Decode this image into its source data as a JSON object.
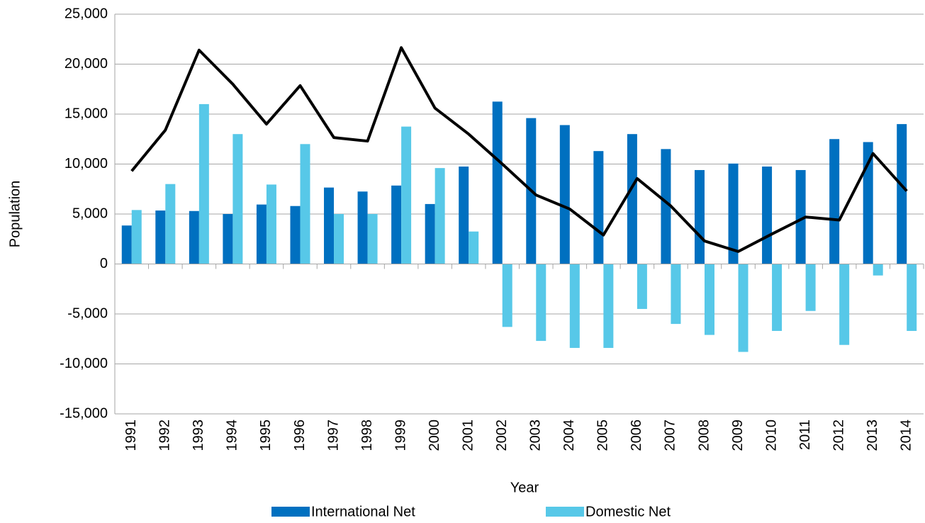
{
  "chart_data": {
    "type": "bar",
    "x_label": "Year",
    "y_label": "Population",
    "categories": [
      "1991",
      "1992",
      "1993",
      "1994",
      "1995",
      "1996",
      "1997",
      "1998",
      "1999",
      "2000",
      "2001",
      "2002",
      "2003",
      "2004",
      "2005",
      "2006",
      "2007",
      "2008",
      "2009",
      "2010",
      "2011",
      "2012",
      "2013",
      "2014"
    ],
    "series": [
      {
        "name": "International Net",
        "color": "#0070c0",
        "values": [
          3850,
          5350,
          5300,
          5000,
          5950,
          5800,
          7650,
          7250,
          7850,
          6000,
          9750,
          16250,
          14600,
          13900,
          11300,
          13000,
          11500,
          9400,
          10050,
          9750,
          9400,
          12500,
          12200,
          14000
        ]
      },
      {
        "name": "Domestic Net",
        "color": "#57c8e8",
        "values": [
          5400,
          8000,
          16000,
          13000,
          7950,
          12000,
          5000,
          5000,
          13750,
          9600,
          3250,
          -6300,
          -7700,
          -8400,
          -8400,
          -4500,
          -6000,
          -7100,
          -8800,
          -6700,
          -4700,
          -8100,
          -1150,
          -6700
        ]
      },
      {
        "type": "line",
        "color": "#000000",
        "values": [
          9300,
          13400,
          21400,
          18000,
          14000,
          17850,
          12650,
          12300,
          21650,
          15600,
          13000,
          10000,
          6900,
          5500,
          2900,
          8550,
          5800,
          2300,
          1250,
          3000,
          4700,
          4400,
          11050,
          7300
        ]
      }
    ],
    "ylim": [
      -15000,
      25000
    ],
    "yticks": [
      {
        "value": -15000,
        "label": "-15,000"
      },
      {
        "value": -10000,
        "label": "-10,000"
      },
      {
        "value": -5000,
        "label": "-5,000"
      },
      0,
      {
        "value": 5000,
        "label": "5,000"
      },
      {
        "value": 10000,
        "label": "10,000"
      },
      {
        "value": 15000,
        "label": "15,000"
      },
      {
        "value": 20000,
        "label": "20,000"
      },
      {
        "value": 25000,
        "label": "25,000"
      }
    ],
    "grid": true,
    "legend": "bottom"
  }
}
